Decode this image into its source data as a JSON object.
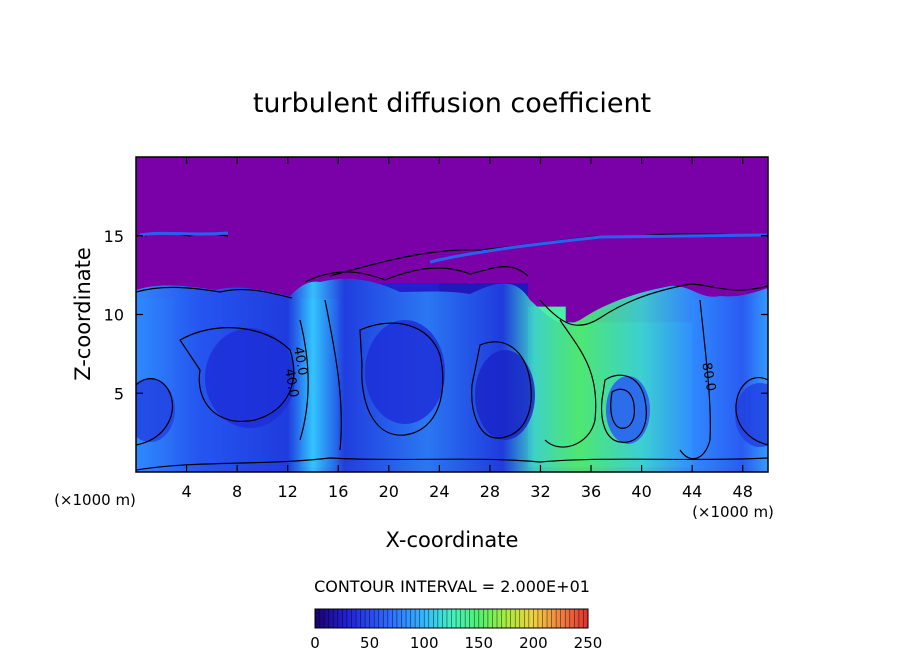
{
  "chart_data": {
    "type": "heatmap",
    "title": "turbulent diffusion coefficient",
    "xlabel": "X-coordinate",
    "ylabel": "Z-coordinate",
    "x_unit": "(×1000 m)",
    "z_unit": "(×1000 m)",
    "xlim": [
      0,
      50
    ],
    "ylim": [
      0,
      20
    ],
    "x_ticks": [
      4,
      8,
      12,
      16,
      20,
      24,
      28,
      32,
      36,
      40,
      44,
      48
    ],
    "y_ticks": [
      5,
      10,
      15
    ],
    "contour_interval_label": "CONTOUR INTERVAL = 2.000E+01",
    "contour_labels": [
      {
        "text": "40.0",
        "x": 12.7,
        "z": 7.0
      },
      {
        "text": "40.0",
        "x": 12.0,
        "z": 5.6
      },
      {
        "text": "80.0",
        "x": 45.0,
        "z": 6.0
      }
    ],
    "colorbar": {
      "min": 0,
      "max": 250,
      "ticks": [
        0,
        50,
        100,
        150,
        200,
        250
      ],
      "colors": [
        "#1a0070",
        "#2222d8",
        "#2f6fff",
        "#33b8ff",
        "#45f0c0",
        "#50f070",
        "#a8ec40",
        "#f0d040",
        "#f08040",
        "#e03030"
      ]
    },
    "background_value_color": "#7a00a8",
    "cells": [
      {
        "x0": 0,
        "x1": 3,
        "z0": 0.3,
        "z1": 11,
        "value": 50
      },
      {
        "x0": 3,
        "x1": 8,
        "z0": 0.3,
        "z1": 11.5,
        "value": 30
      },
      {
        "x0": 8,
        "x1": 13,
        "z0": 0.3,
        "z1": 11,
        "value": 25
      },
      {
        "x0": 13,
        "x1": 16,
        "z0": 0.3,
        "z1": 11,
        "value": 70
      },
      {
        "x0": 16,
        "x1": 24,
        "z0": 0.3,
        "z1": 12,
        "value": 25
      },
      {
        "x0": 24,
        "x1": 31,
        "z0": 0.3,
        "z1": 12,
        "value": 20
      },
      {
        "x0": 31,
        "x1": 34,
        "z0": 0.3,
        "z1": 10.5,
        "value": 120
      },
      {
        "x0": 34,
        "x1": 44,
        "z0": 0.3,
        "z1": 9.5,
        "value": 100
      },
      {
        "x0": 44,
        "x1": 50,
        "z0": 0.3,
        "z1": 11,
        "value": 45
      }
    ]
  }
}
